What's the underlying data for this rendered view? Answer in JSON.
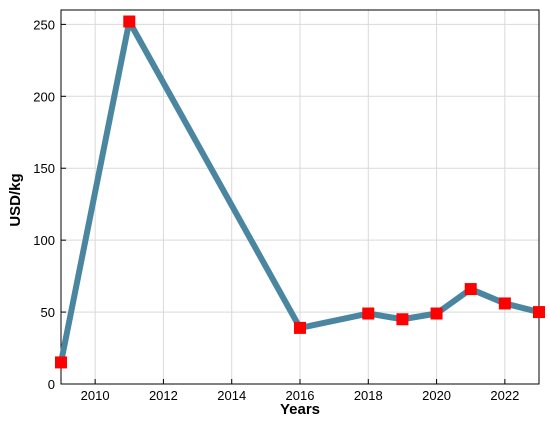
{
  "chart_data": {
    "type": "line",
    "x": [
      2009,
      2011,
      2016,
      2018,
      2019,
      2020,
      2021,
      2022,
      2023
    ],
    "values": [
      15,
      252,
      39,
      49,
      45,
      49,
      66,
      56,
      50
    ],
    "color": "#4a86a0",
    "marker_color": "#ff0000",
    "xlim": [
      2009,
      2023
    ],
    "ylim": [
      0,
      260
    ],
    "xticks": [
      2010,
      2012,
      2014,
      2016,
      2018,
      2020,
      2022
    ],
    "yticks": [
      0,
      50,
      100,
      150,
      200,
      250
    ],
    "grid": true,
    "xlabel": "Years",
    "ylabel": "USD/kg"
  }
}
